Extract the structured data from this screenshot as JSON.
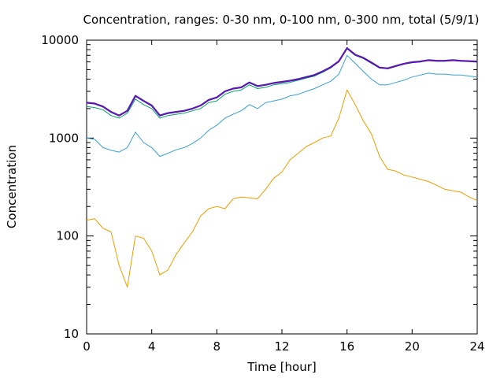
{
  "chart_data": {
    "type": "line",
    "title": "Concentration, ranges: 0-30 nm, 0-100 nm, 0-300 nm, total (5/9/1)",
    "xlabel": "Time [hour]",
    "ylabel": "Concentration",
    "xlim": [
      0,
      24
    ],
    "ylim": [
      10,
      10000
    ],
    "yscale": "log",
    "grid": false,
    "x_ticks": [
      0,
      4,
      8,
      12,
      16,
      20,
      24
    ],
    "y_ticks": [
      10,
      100,
      1000,
      10000
    ],
    "colors": {
      "0-30 nm": "#e69f00",
      "0-100 nm": "#3a9fcf",
      "0-300 nm": "#0a9e73",
      "total": "#9400d3",
      "total_edge": "#1a2a8a"
    },
    "x": [
      0,
      0.5,
      1,
      1.5,
      2,
      2.5,
      3,
      3.5,
      4,
      4.5,
      5,
      5.5,
      6,
      6.5,
      7,
      7.5,
      8,
      8.5,
      9,
      9.5,
      10,
      10.5,
      11,
      11.5,
      12,
      12.5,
      13,
      13.5,
      14,
      14.5,
      15,
      15.5,
      16,
      16.5,
      17,
      17.5,
      18,
      18.5,
      19,
      19.5,
      20,
      20.5,
      21,
      21.5,
      22,
      22.5,
      23,
      23.5,
      24
    ],
    "series": [
      {
        "name": "0-30 nm",
        "values": [
          145,
          150,
          120,
          110,
          50,
          30,
          100,
          95,
          70,
          40,
          45,
          65,
          85,
          110,
          160,
          190,
          200,
          190,
          240,
          250,
          245,
          240,
          300,
          390,
          450,
          600,
          700,
          820,
          900,
          1000,
          1050,
          1600,
          3100,
          2200,
          1500,
          1100,
          650,
          480,
          460,
          420,
          400,
          380,
          360,
          330,
          300,
          290,
          280,
          250,
          230
        ]
      },
      {
        "name": "0-100 nm",
        "values": [
          1000,
          970,
          800,
          750,
          720,
          800,
          1150,
          900,
          800,
          650,
          700,
          760,
          800,
          880,
          1000,
          1200,
          1350,
          1600,
          1750,
          1900,
          2200,
          2000,
          2300,
          2400,
          2500,
          2700,
          2800,
          3000,
          3200,
          3500,
          3800,
          4500,
          7000,
          5800,
          4800,
          4000,
          3500,
          3500,
          3700,
          3900,
          4200,
          4400,
          4600,
          4500,
          4500,
          4400,
          4400,
          4300,
          4200
        ]
      },
      {
        "name": "0-300 nm",
        "values": [
          2100,
          2050,
          1950,
          1700,
          1600,
          1800,
          2500,
          2200,
          2000,
          1600,
          1700,
          1750,
          1800,
          1900,
          2000,
          2300,
          2400,
          2800,
          3000,
          3100,
          3500,
          3200,
          3300,
          3500,
          3600,
          3700,
          3900,
          4100,
          4300,
          4700,
          5200,
          6000,
          8200,
          7000,
          6500,
          5800,
          5200,
          5100,
          5400,
          5700,
          5900,
          6000,
          6200,
          6100,
          6100,
          6200,
          6100,
          6050,
          6000
        ]
      },
      {
        "name": "total",
        "values": [
          2300,
          2250,
          2100,
          1850,
          1700,
          1900,
          2700,
          2400,
          2150,
          1700,
          1800,
          1850,
          1900,
          2000,
          2150,
          2450,
          2600,
          3000,
          3200,
          3300,
          3700,
          3400,
          3500,
          3650,
          3750,
          3850,
          4000,
          4200,
          4400,
          4800,
          5300,
          6100,
          8300,
          7100,
          6600,
          5900,
          5250,
          5150,
          5450,
          5750,
          5950,
          6050,
          6250,
          6150,
          6150,
          6250,
          6150,
          6100,
          6050
        ]
      }
    ]
  }
}
